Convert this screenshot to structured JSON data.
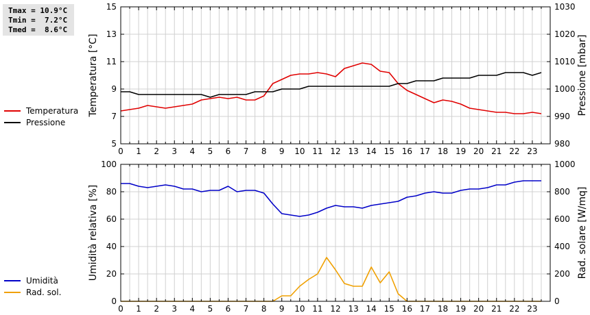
{
  "stats": {
    "tmax": "Tmax = 10.9°C",
    "tmin": "Tmin =  7.2°C",
    "tmed": "Tmed =  8.6°C"
  },
  "colors": {
    "temperature": "#e00000",
    "pressure": "#000000",
    "humidity": "#0000c8",
    "radiation": "#f0a000",
    "grid": "#d0d0d0"
  },
  "chart_data": [
    {
      "type": "line",
      "x_ticks": [
        "0",
        "1",
        "2",
        "3",
        "4",
        "5",
        "6",
        "7",
        "8",
        "9",
        "10",
        "11",
        "12",
        "13",
        "14",
        "15",
        "16",
        "17",
        "18",
        "19",
        "20",
        "21",
        "22",
        "23"
      ],
      "xlim": [
        0,
        24
      ],
      "ylabel": "Temperatura [°C]",
      "ylabel_right": "Pressione [mbar]",
      "ylim": [
        5,
        15
      ],
      "ylim_right": [
        980,
        1030
      ],
      "y_ticks": [
        "5",
        "7",
        "9",
        "11",
        "13",
        "15"
      ],
      "y_ticks_right": [
        "980",
        "990",
        "1000",
        "1010",
        "1020",
        "1030"
      ],
      "grid": true,
      "legend": [
        "Temperatura",
        "Pressione"
      ],
      "series": [
        {
          "name": "Temperatura",
          "axis": "left",
          "x": [
            0,
            0.5,
            1,
            1.5,
            2,
            2.5,
            3,
            3.5,
            4,
            4.5,
            5,
            5.5,
            6,
            6.5,
            7,
            7.5,
            8,
            8.5,
            9,
            9.5,
            10,
            10.5,
            11,
            11.5,
            12,
            12.5,
            13,
            13.5,
            14,
            14.5,
            15,
            15.5,
            16,
            16.5,
            17,
            17.5,
            18,
            18.5,
            19,
            19.5,
            20,
            20.5,
            21,
            21.5,
            22,
            22.5,
            23,
            23.5
          ],
          "values": [
            7.4,
            7.5,
            7.6,
            7.8,
            7.7,
            7.6,
            7.7,
            7.8,
            7.9,
            8.2,
            8.3,
            8.4,
            8.3,
            8.4,
            8.2,
            8.2,
            8.5,
            9.4,
            9.7,
            10.0,
            10.1,
            10.1,
            10.2,
            10.1,
            9.9,
            10.5,
            10.7,
            10.9,
            10.8,
            10.3,
            10.2,
            9.4,
            8.9,
            8.6,
            8.3,
            8.0,
            8.2,
            8.1,
            7.9,
            7.6,
            7.5,
            7.4,
            7.3,
            7.3,
            7.2,
            7.2,
            7.3,
            7.2
          ]
        },
        {
          "name": "Pressione",
          "axis": "right",
          "x": [
            0,
            0.5,
            1,
            1.5,
            2,
            2.5,
            3,
            3.5,
            4,
            4.5,
            5,
            5.5,
            6,
            6.5,
            7,
            7.5,
            8,
            8.5,
            9,
            9.5,
            10,
            10.5,
            11,
            11.5,
            12,
            12.5,
            13,
            13.5,
            14,
            14.5,
            15,
            15.5,
            16,
            16.5,
            17,
            17.5,
            18,
            18.5,
            19,
            19.5,
            20,
            20.5,
            21,
            21.5,
            22,
            22.5,
            23,
            23.5
          ],
          "values": [
            999,
            999,
            998,
            998,
            998,
            998,
            998,
            998,
            998,
            998,
            997,
            998,
            998,
            998,
            998,
            999,
            999,
            999,
            1000,
            1000,
            1000,
            1001,
            1001,
            1001,
            1001,
            1001,
            1001,
            1001,
            1001,
            1001,
            1001,
            1002,
            1002,
            1003,
            1003,
            1003,
            1004,
            1004,
            1004,
            1004,
            1005,
            1005,
            1005,
            1006,
            1006,
            1006,
            1005,
            1006
          ]
        }
      ]
    },
    {
      "type": "line",
      "x_ticks": [
        "0",
        "1",
        "2",
        "3",
        "4",
        "5",
        "6",
        "7",
        "8",
        "9",
        "10",
        "11",
        "12",
        "13",
        "14",
        "15",
        "16",
        "17",
        "18",
        "19",
        "20",
        "21",
        "22",
        "23"
      ],
      "xlim": [
        0,
        24
      ],
      "ylabel": "Umidità relativa [%]",
      "ylabel_right": "Rad. solare [W/mq]",
      "ylim": [
        0,
        100
      ],
      "ylim_right": [
        0,
        1000
      ],
      "y_ticks": [
        "0",
        "20",
        "40",
        "60",
        "80",
        "100"
      ],
      "y_ticks_right": [
        "0",
        "200",
        "400",
        "600",
        "800",
        "1000"
      ],
      "grid": true,
      "legend": [
        "Umidità",
        "Rad. sol."
      ],
      "series": [
        {
          "name": "Umidità",
          "axis": "left",
          "x": [
            0,
            0.5,
            1,
            1.5,
            2,
            2.5,
            3,
            3.5,
            4,
            4.5,
            5,
            5.5,
            6,
            6.5,
            7,
            7.5,
            8,
            8.5,
            9,
            9.5,
            10,
            10.5,
            11,
            11.5,
            12,
            12.5,
            13,
            13.5,
            14,
            14.5,
            15,
            15.5,
            16,
            16.5,
            17,
            17.5,
            18,
            18.5,
            19,
            19.5,
            20,
            20.5,
            21,
            21.5,
            22,
            22.5,
            23,
            23.5
          ],
          "values": [
            86,
            86,
            84,
            83,
            84,
            85,
            84,
            82,
            82,
            80,
            81,
            81,
            84,
            80,
            81,
            81,
            79,
            71,
            64,
            63,
            62,
            63,
            65,
            68,
            70,
            69,
            69,
            68,
            70,
            71,
            72,
            73,
            76,
            77,
            79,
            80,
            79,
            79,
            81,
            82,
            82,
            83,
            85,
            85,
            87,
            88,
            88,
            88
          ]
        },
        {
          "name": "Rad. sol.",
          "axis": "right",
          "x": [
            0,
            0.5,
            1,
            1.5,
            2,
            2.5,
            3,
            3.5,
            4,
            4.5,
            5,
            5.5,
            6,
            6.5,
            7,
            7.5,
            8,
            8.5,
            9,
            9.5,
            10,
            10.5,
            11,
            11.5,
            12,
            12.5,
            13,
            13.5,
            14,
            14.5,
            15,
            15.5,
            16,
            16.5,
            17,
            17.5,
            18,
            18.5,
            19,
            19.5,
            20,
            20.5,
            21,
            21.5,
            22,
            22.5,
            23,
            23.5
          ],
          "values": [
            0,
            0,
            0,
            0,
            0,
            0,
            0,
            0,
            0,
            0,
            0,
            0,
            0,
            0,
            0,
            0,
            0,
            0,
            40,
            40,
            110,
            160,
            200,
            320,
            230,
            130,
            110,
            110,
            250,
            135,
            215,
            55,
            0,
            0,
            0,
            0,
            0,
            0,
            0,
            0,
            0,
            0,
            0,
            0,
            0,
            0,
            0,
            0
          ]
        }
      ]
    }
  ]
}
